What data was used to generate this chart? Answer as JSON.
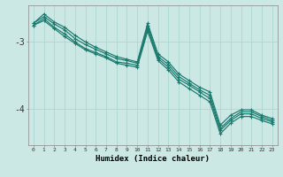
{
  "background_color": "#cce8e4",
  "line_color": "#1a7a6e",
  "grid_color": "#b0d8d0",
  "xlabel": "Humidex (Indice chaleur)",
  "ytick_vals": [
    -4,
    -3
  ],
  "ytick_labels": [
    "-4",
    "-3"
  ],
  "xlim": [
    -0.5,
    23.5
  ],
  "ylim": [
    -4.55,
    -2.45
  ],
  "series": [
    {
      "x": [
        0,
        1,
        2,
        3,
        4,
        5,
        6,
        7,
        8,
        9,
        10,
        11,
        12,
        13,
        14,
        15,
        16,
        17,
        18,
        19,
        20,
        21,
        22,
        23
      ],
      "y": [
        -2.72,
        -2.58,
        -2.7,
        -2.78,
        -2.9,
        -3.0,
        -3.08,
        -3.15,
        -3.22,
        -3.26,
        -3.3,
        -2.72,
        -3.18,
        -3.3,
        -3.48,
        -3.58,
        -3.68,
        -3.75,
        -4.25,
        -4.1,
        -4.02,
        -4.02,
        -4.1,
        -4.15
      ]
    },
    {
      "x": [
        0,
        1,
        2,
        3,
        4,
        5,
        6,
        7,
        8,
        9,
        10,
        11,
        12,
        13,
        14,
        15,
        16,
        17,
        18,
        19,
        20,
        21,
        22,
        23
      ],
      "y": [
        -2.72,
        -2.62,
        -2.73,
        -2.82,
        -2.95,
        -3.04,
        -3.11,
        -3.18,
        -3.25,
        -3.28,
        -3.32,
        -2.76,
        -3.22,
        -3.34,
        -3.52,
        -3.62,
        -3.72,
        -3.8,
        -4.3,
        -4.15,
        -4.05,
        -4.05,
        -4.12,
        -4.18
      ]
    },
    {
      "x": [
        0,
        1,
        2,
        3,
        4,
        5,
        6,
        7,
        8,
        9,
        10,
        11,
        12,
        13,
        14,
        15,
        16,
        17,
        18,
        19,
        20,
        21,
        22,
        23
      ],
      "y": [
        -2.75,
        -2.65,
        -2.78,
        -2.88,
        -3.0,
        -3.1,
        -3.16,
        -3.22,
        -3.3,
        -3.32,
        -3.35,
        -2.8,
        -3.25,
        -3.38,
        -3.56,
        -3.65,
        -3.75,
        -3.85,
        -4.33,
        -4.18,
        -4.08,
        -4.08,
        -4.15,
        -4.2
      ]
    },
    {
      "x": [
        0,
        1,
        2,
        3,
        4,
        5,
        6,
        7,
        8,
        9,
        10,
        11,
        12,
        13,
        14,
        15,
        16,
        17,
        18,
        19,
        20,
        21,
        22,
        23
      ],
      "y": [
        -2.75,
        -2.68,
        -2.8,
        -2.92,
        -3.02,
        -3.12,
        -3.18,
        -3.24,
        -3.32,
        -3.35,
        -3.38,
        -2.84,
        -3.28,
        -3.42,
        -3.6,
        -3.7,
        -3.8,
        -3.9,
        -4.38,
        -4.22,
        -4.12,
        -4.12,
        -4.18,
        -4.23
      ]
    }
  ]
}
